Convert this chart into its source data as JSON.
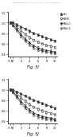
{
  "header": "Patent Application Publication    Jan. 16, 2014  Sheet 19 of 22    US 2014/0004546 A1",
  "fig_I_label": "Fig. 5I",
  "fig_J_label": "Fig. 5J",
  "x": [
    -0.5,
    0,
    1,
    2,
    3,
    4,
    5,
    6,
    7,
    8,
    9,
    10
  ],
  "series_I": [
    [
      1.0,
      1.0,
      0.96,
      0.92,
      0.88,
      0.84,
      0.8,
      0.77,
      0.74,
      0.71,
      0.68,
      0.65
    ],
    [
      1.0,
      0.98,
      0.92,
      0.85,
      0.78,
      0.72,
      0.67,
      0.63,
      0.6,
      0.57,
      0.55,
      0.53
    ],
    [
      1.0,
      0.96,
      0.88,
      0.78,
      0.69,
      0.62,
      0.56,
      0.52,
      0.49,
      0.47,
      0.46,
      0.44
    ],
    [
      1.0,
      0.95,
      0.85,
      0.74,
      0.65,
      0.58,
      0.52,
      0.48,
      0.46,
      0.44,
      0.43,
      0.42
    ]
  ],
  "series_J": [
    [
      1.0,
      1.0,
      0.96,
      0.92,
      0.88,
      0.84,
      0.8,
      0.77,
      0.74,
      0.71,
      0.68,
      0.65
    ],
    [
      1.0,
      0.98,
      0.92,
      0.85,
      0.78,
      0.72,
      0.67,
      0.63,
      0.6,
      0.57,
      0.55,
      0.53
    ],
    [
      1.0,
      0.96,
      0.88,
      0.78,
      0.69,
      0.62,
      0.56,
      0.52,
      0.49,
      0.47,
      0.46,
      0.44
    ],
    [
      1.0,
      0.95,
      0.85,
      0.74,
      0.65,
      0.58,
      0.52,
      0.48,
      0.46,
      0.44,
      0.43,
      0.42
    ]
  ],
  "error": [
    0.025,
    0.025,
    0.025,
    0.025
  ],
  "colors": [
    "#333333",
    "#555555",
    "#222222",
    "#666666"
  ],
  "markers": [
    "s",
    "s",
    "^",
    "^"
  ],
  "markerfacecolors": [
    "#333333",
    "#ffffff",
    "#222222",
    "#ffffff"
  ],
  "markeredgecolors": [
    "#333333",
    "#333333",
    "#222222",
    "#444444"
  ],
  "ylim": [
    0.35,
    1.15
  ],
  "xlim": [
    -1.0,
    10.5
  ],
  "xticks": [
    -0.5,
    0,
    2,
    4,
    6,
    8,
    10
  ],
  "xticklabels": [
    "-0.5",
    "0",
    "2",
    "4",
    "6",
    "8",
    "10"
  ],
  "yticks": [
    0.4,
    0.6,
    0.8,
    1.0,
    1.2
  ],
  "yticklabels": [
    "0.4",
    "0.6",
    "0.8",
    "1.0",
    "1.2"
  ],
  "bg_color": "#ffffff",
  "legend_labels": [
    "Ctx",
    "EGFR",
    "Mix1:1",
    "Mix1:5"
  ]
}
